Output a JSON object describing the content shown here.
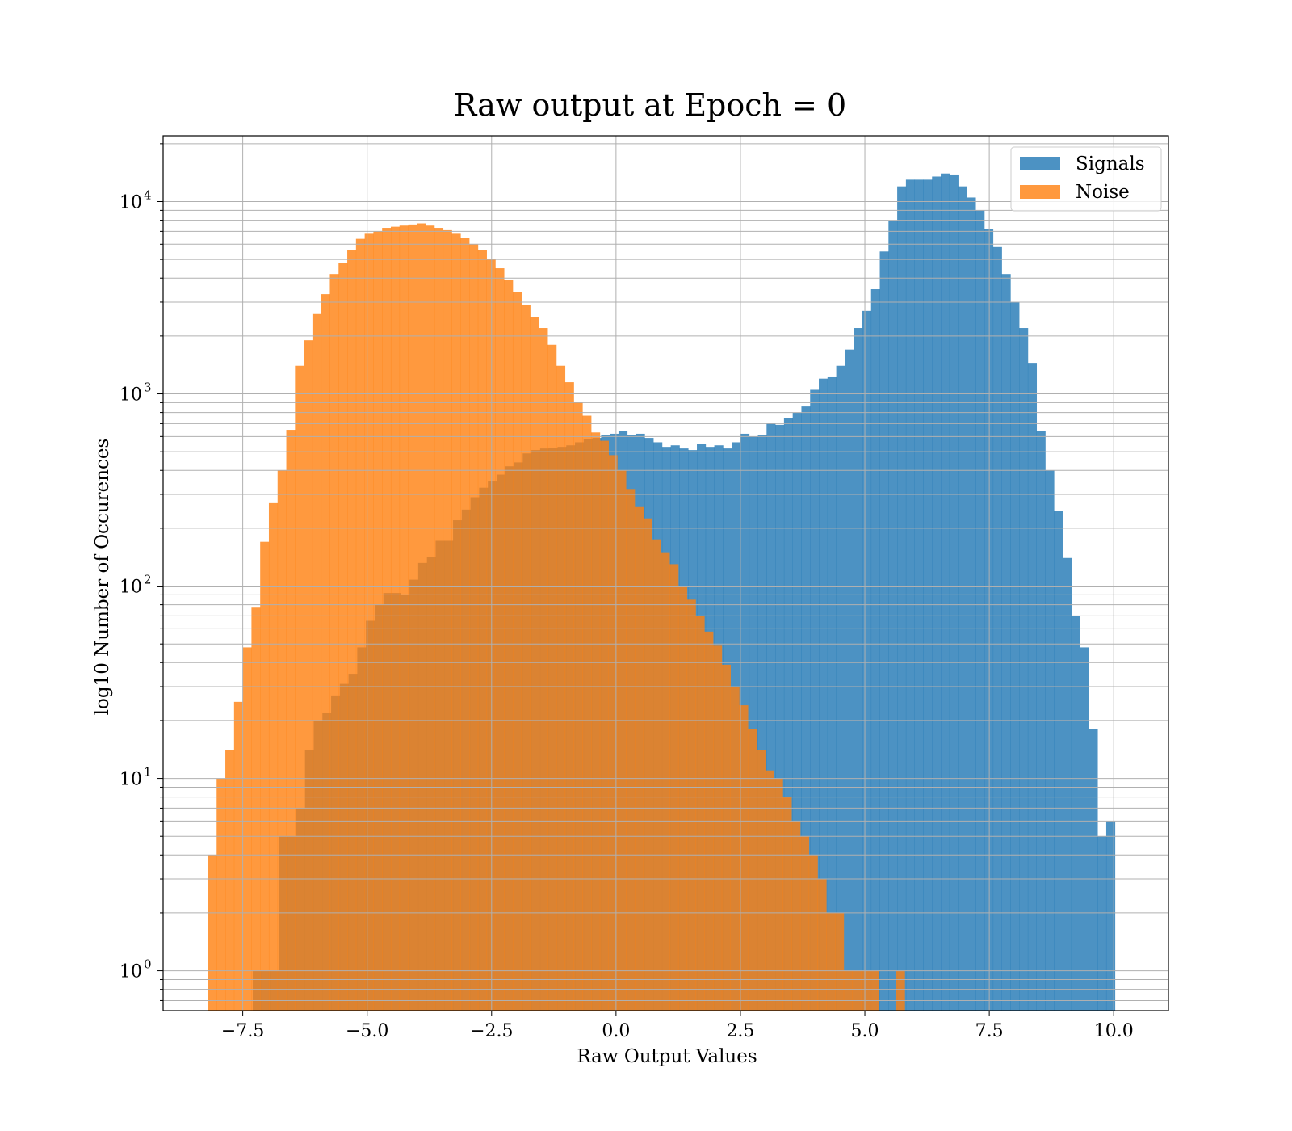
{
  "chart_data": {
    "type": "histogram",
    "title": "Raw output at Epoch = 0",
    "xlabel": "Raw Output Values",
    "ylabel": "log10 Number of Occurences",
    "xlim": [
      -9.1,
      11.1
    ],
    "ylim": [
      0.62,
      22000
    ],
    "yscale": "log",
    "grid": true,
    "legend_position": "top-right",
    "x_ticks": [
      -7.5,
      -5.0,
      -2.5,
      0.0,
      2.5,
      5.0,
      7.5,
      10.0
    ],
    "x_tick_labels": [
      "−7.5",
      "−5.0",
      "−2.5",
      "0.0",
      "2.5",
      "5.0",
      "7.5",
      "10.0"
    ],
    "y_ticks": [
      1,
      10,
      100,
      1000,
      10000
    ],
    "y_tick_labels": [
      {
        "base": "10",
        "exp": "0"
      },
      {
        "base": "10",
        "exp": "1"
      },
      {
        "base": "10",
        "exp": "2"
      },
      {
        "base": "10",
        "exp": "3"
      },
      {
        "base": "10",
        "exp": "4"
      }
    ],
    "colors": {
      "signals": "#1f77b4",
      "noise": "#ff7f0e",
      "grid": "#b0b0b0"
    },
    "series": [
      {
        "name": "Signals",
        "bin_start": -7.3,
        "bin_width": 0.175,
        "counts": [
          1,
          1,
          1,
          5,
          5,
          7,
          14,
          20,
          22,
          27,
          31,
          35,
          48,
          66,
          80,
          92,
          92,
          90,
          108,
          132,
          142,
          172,
          172,
          220,
          250,
          290,
          325,
          350,
          380,
          420,
          440,
          490,
          510,
          520,
          525,
          530,
          540,
          560,
          580,
          590,
          610,
          620,
          640,
          610,
          620,
          590,
          560,
          530,
          540,
          520,
          510,
          550,
          530,
          540,
          520,
          560,
          620,
          600,
          610,
          700,
          690,
          750,
          800,
          860,
          1050,
          1200,
          1220,
          1400,
          1700,
          2200,
          2700,
          3500,
          5500,
          8000,
          12000,
          13000,
          13000,
          13000,
          13500,
          14000,
          13700,
          12000,
          10500,
          9000,
          7200,
          5800,
          4200,
          3000,
          2200,
          1450,
          640,
          400,
          245,
          140,
          70,
          48,
          18,
          5,
          6
        ]
      },
      {
        "name": "Noise",
        "bin_start": -8.2,
        "bin_width": 0.175,
        "counts": [
          4,
          10,
          14,
          25,
          48,
          78,
          170,
          270,
          400,
          650,
          1400,
          1900,
          2600,
          3300,
          4200,
          4800,
          5600,
          6400,
          6800,
          7000,
          7300,
          7400,
          7500,
          7600,
          7700,
          7500,
          7300,
          7100,
          6800,
          6500,
          6000,
          5600,
          5000,
          4500,
          3900,
          3400,
          2900,
          2500,
          2200,
          1800,
          1400,
          1150,
          900,
          770,
          630,
          570,
          480,
          400,
          320,
          260,
          225,
          175,
          150,
          130,
          100,
          85,
          70,
          58,
          49,
          39,
          30,
          24,
          18,
          14,
          11,
          10,
          8,
          6,
          5,
          4,
          3,
          2,
          2,
          1,
          1,
          1,
          1,
          0,
          0,
          1
        ]
      }
    ]
  }
}
